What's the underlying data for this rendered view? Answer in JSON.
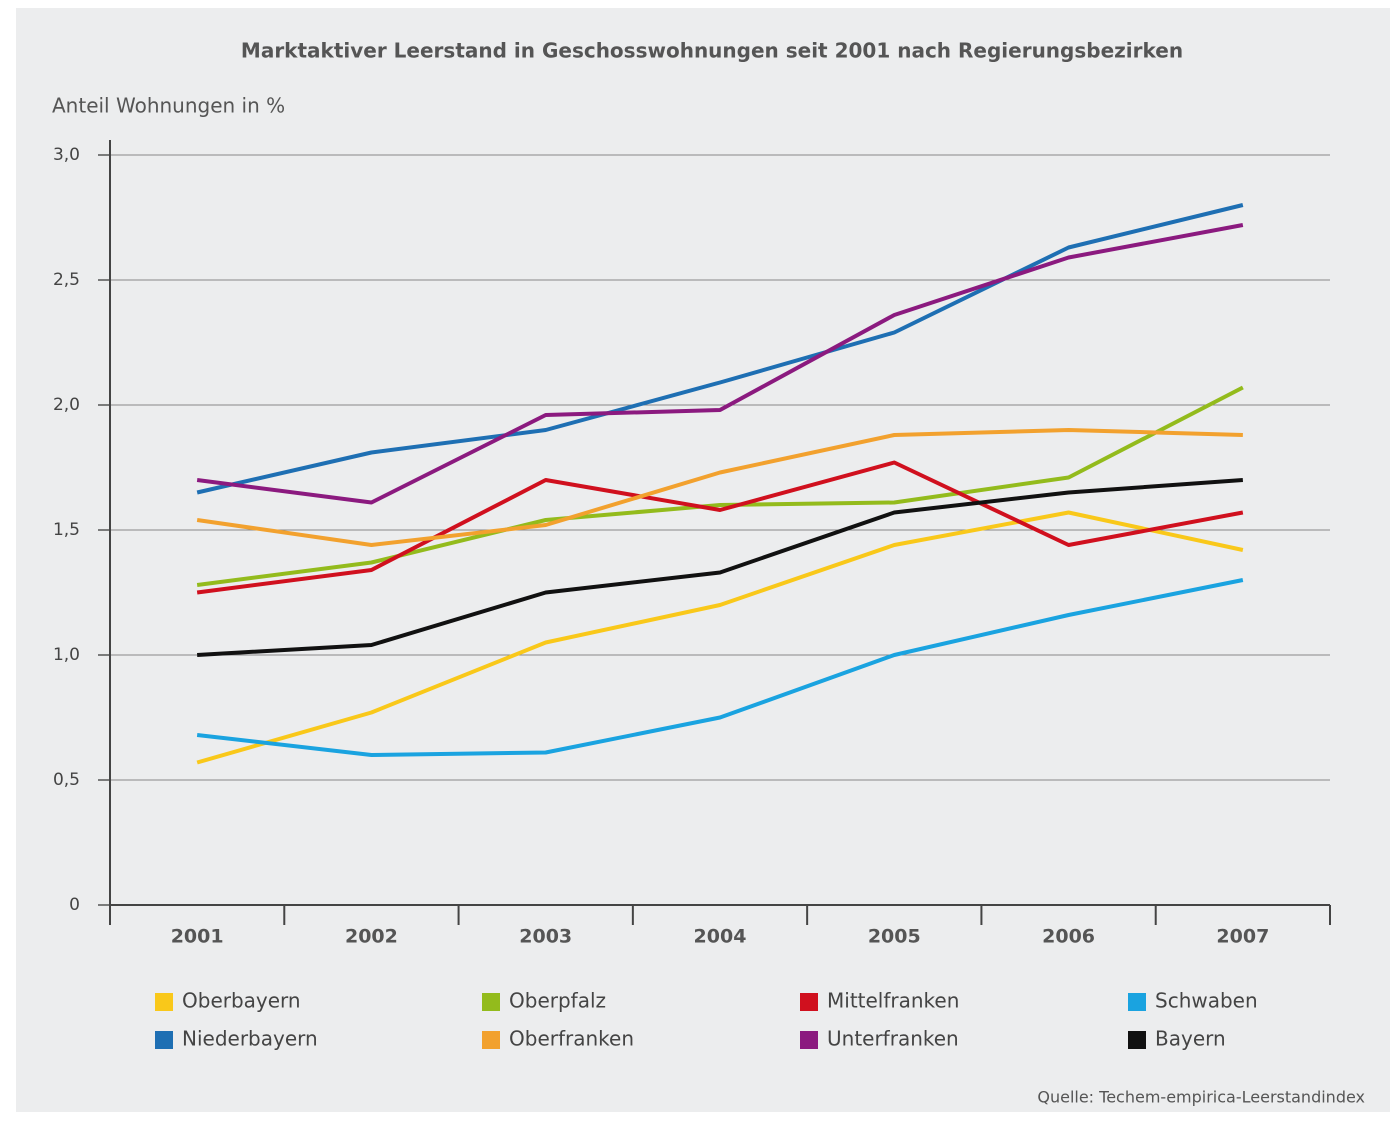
{
  "chart_data": {
    "type": "line",
    "title": "Marktaktiver Leerstand in Geschosswohnungen seit 2001 nach Regierungsbezirken",
    "y_label": "Anteil Wohnungen in %",
    "source": "Quelle: Techem-empirica-Leerstandindex",
    "categories": [
      "2001",
      "2002",
      "2003",
      "2004",
      "2005",
      "2006",
      "2007"
    ],
    "ylim": [
      0,
      3
    ],
    "yticks": [
      0,
      {
        "value": 0.5,
        "label": "0,5"
      },
      {
        "value": 1,
        "label": "1,0"
      },
      {
        "value": 1.5,
        "label": "1,5"
      },
      {
        "value": 2,
        "label": "2,0"
      },
      {
        "value": 2.5,
        "label": "2,5"
      },
      {
        "value": 3,
        "label": "3,0"
      }
    ],
    "grid": true,
    "series": [
      {
        "name": "Oberbayern",
        "color": "#f9c81a",
        "values": [
          0.57,
          0.77,
          1.05,
          1.2,
          1.44,
          1.57,
          1.42
        ]
      },
      {
        "name": "Oberpfalz",
        "color": "#93bb1c",
        "values": [
          1.28,
          1.37,
          1.54,
          1.6,
          1.61,
          1.71,
          2.07
        ]
      },
      {
        "name": "Mittelfranken",
        "color": "#d0101e",
        "values": [
          1.25,
          1.34,
          1.7,
          1.58,
          1.77,
          1.44,
          1.57
        ]
      },
      {
        "name": "Schwaben",
        "color": "#1aa3e0",
        "values": [
          0.68,
          0.6,
          0.61,
          0.75,
          1.0,
          1.16,
          1.3
        ]
      },
      {
        "name": "Niederbayern",
        "color": "#1e6fb3",
        "values": [
          1.65,
          1.81,
          1.9,
          2.09,
          2.29,
          2.63,
          2.8
        ]
      },
      {
        "name": "Oberfranken",
        "color": "#f2a12e",
        "values": [
          1.54,
          1.44,
          1.52,
          1.73,
          1.88,
          1.9,
          1.88
        ]
      },
      {
        "name": "Unterfranken",
        "color": "#8b1a7f",
        "values": [
          1.7,
          1.61,
          1.96,
          1.98,
          2.36,
          2.59,
          2.72
        ]
      },
      {
        "name": "Bayern",
        "color": "#111111",
        "values": [
          1.0,
          1.04,
          1.25,
          1.33,
          1.57,
          1.65,
          1.7
        ]
      }
    ]
  }
}
